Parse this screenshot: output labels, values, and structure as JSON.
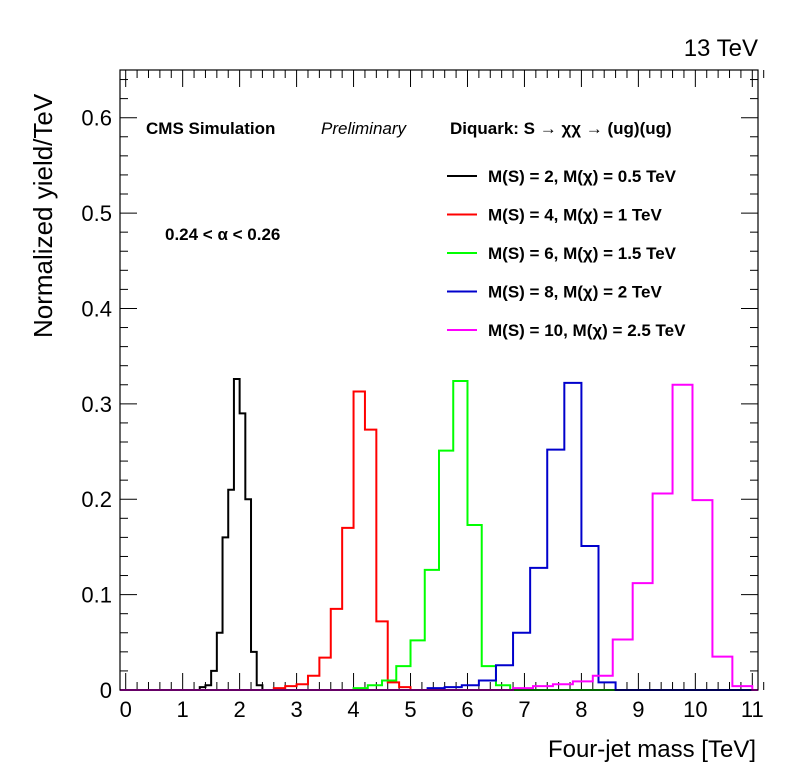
{
  "chart_data": {
    "type": "histogram",
    "energy_label": "13 TeV",
    "xlabel": "Four-jet mass [TeV]",
    "ylabel": "Normalized yield/TeV",
    "xlim": [
      -0.1,
      11.1
    ],
    "ylim": [
      0,
      0.65
    ],
    "x_ticks": [
      "0",
      "1",
      "2",
      "3",
      "4",
      "5",
      "6",
      "7",
      "8",
      "9",
      "10",
      "11"
    ],
    "y_ticks": [
      "0",
      "0.1",
      "0.2",
      "0.3",
      "0.4",
      "0.5",
      "0.6"
    ],
    "cms_label": "CMS Simulation",
    "cms_sublabel": "Preliminary",
    "process_label": "Diquark: S → χχ → (ug)(ug)",
    "alpha_label": "0.24 < α < 0.26",
    "series": [
      {
        "name": "M(S) = 2, M(χ) = 0.5 TeV",
        "color": "#000000",
        "bin_width": 0.1,
        "edges_start": 1.2,
        "values": [
          0.0,
          0.003,
          0.005,
          0.02,
          0.06,
          0.16,
          0.21,
          0.326,
          0.29,
          0.2,
          0.04,
          0.005,
          0.0
        ]
      },
      {
        "name": "M(S) = 4, M(χ) = 1 TeV",
        "color": "#ff0000",
        "bin_width": 0.2,
        "edges_start": 2.6,
        "values": [
          0.002,
          0.004,
          0.006,
          0.015,
          0.034,
          0.085,
          0.17,
          0.313,
          0.273,
          0.072,
          0.008,
          0.003
        ]
      },
      {
        "name": "M(S) = 6, M(χ) = 1.5 TeV",
        "color": "#00ff00",
        "bin_width": 0.25,
        "edges_start": 4.0,
        "values": [
          0.002,
          0.005,
          0.01,
          0.025,
          0.052,
          0.126,
          0.251,
          0.324,
          0.173,
          0.025,
          0.005
        ]
      },
      {
        "name": "M(S) = 8, M(χ) = 2 TeV",
        "color": "#0000cc",
        "bin_width": 0.3,
        "edges_start": 5.3,
        "values": [
          0.002,
          0.003,
          0.005,
          0.01,
          0.026,
          0.06,
          0.128,
          0.252,
          0.322,
          0.151,
          0.008,
          0.0
        ]
      },
      {
        "name": "M(S) = 10, M(χ) = 2.5 TeV",
        "color": "#ff00ff",
        "bin_width": 0.35,
        "edges_start": 6.8,
        "values": [
          0.002,
          0.004,
          0.006,
          0.009,
          0.015,
          0.053,
          0.112,
          0.206,
          0.32,
          0.199,
          0.035,
          0.004
        ]
      }
    ]
  }
}
